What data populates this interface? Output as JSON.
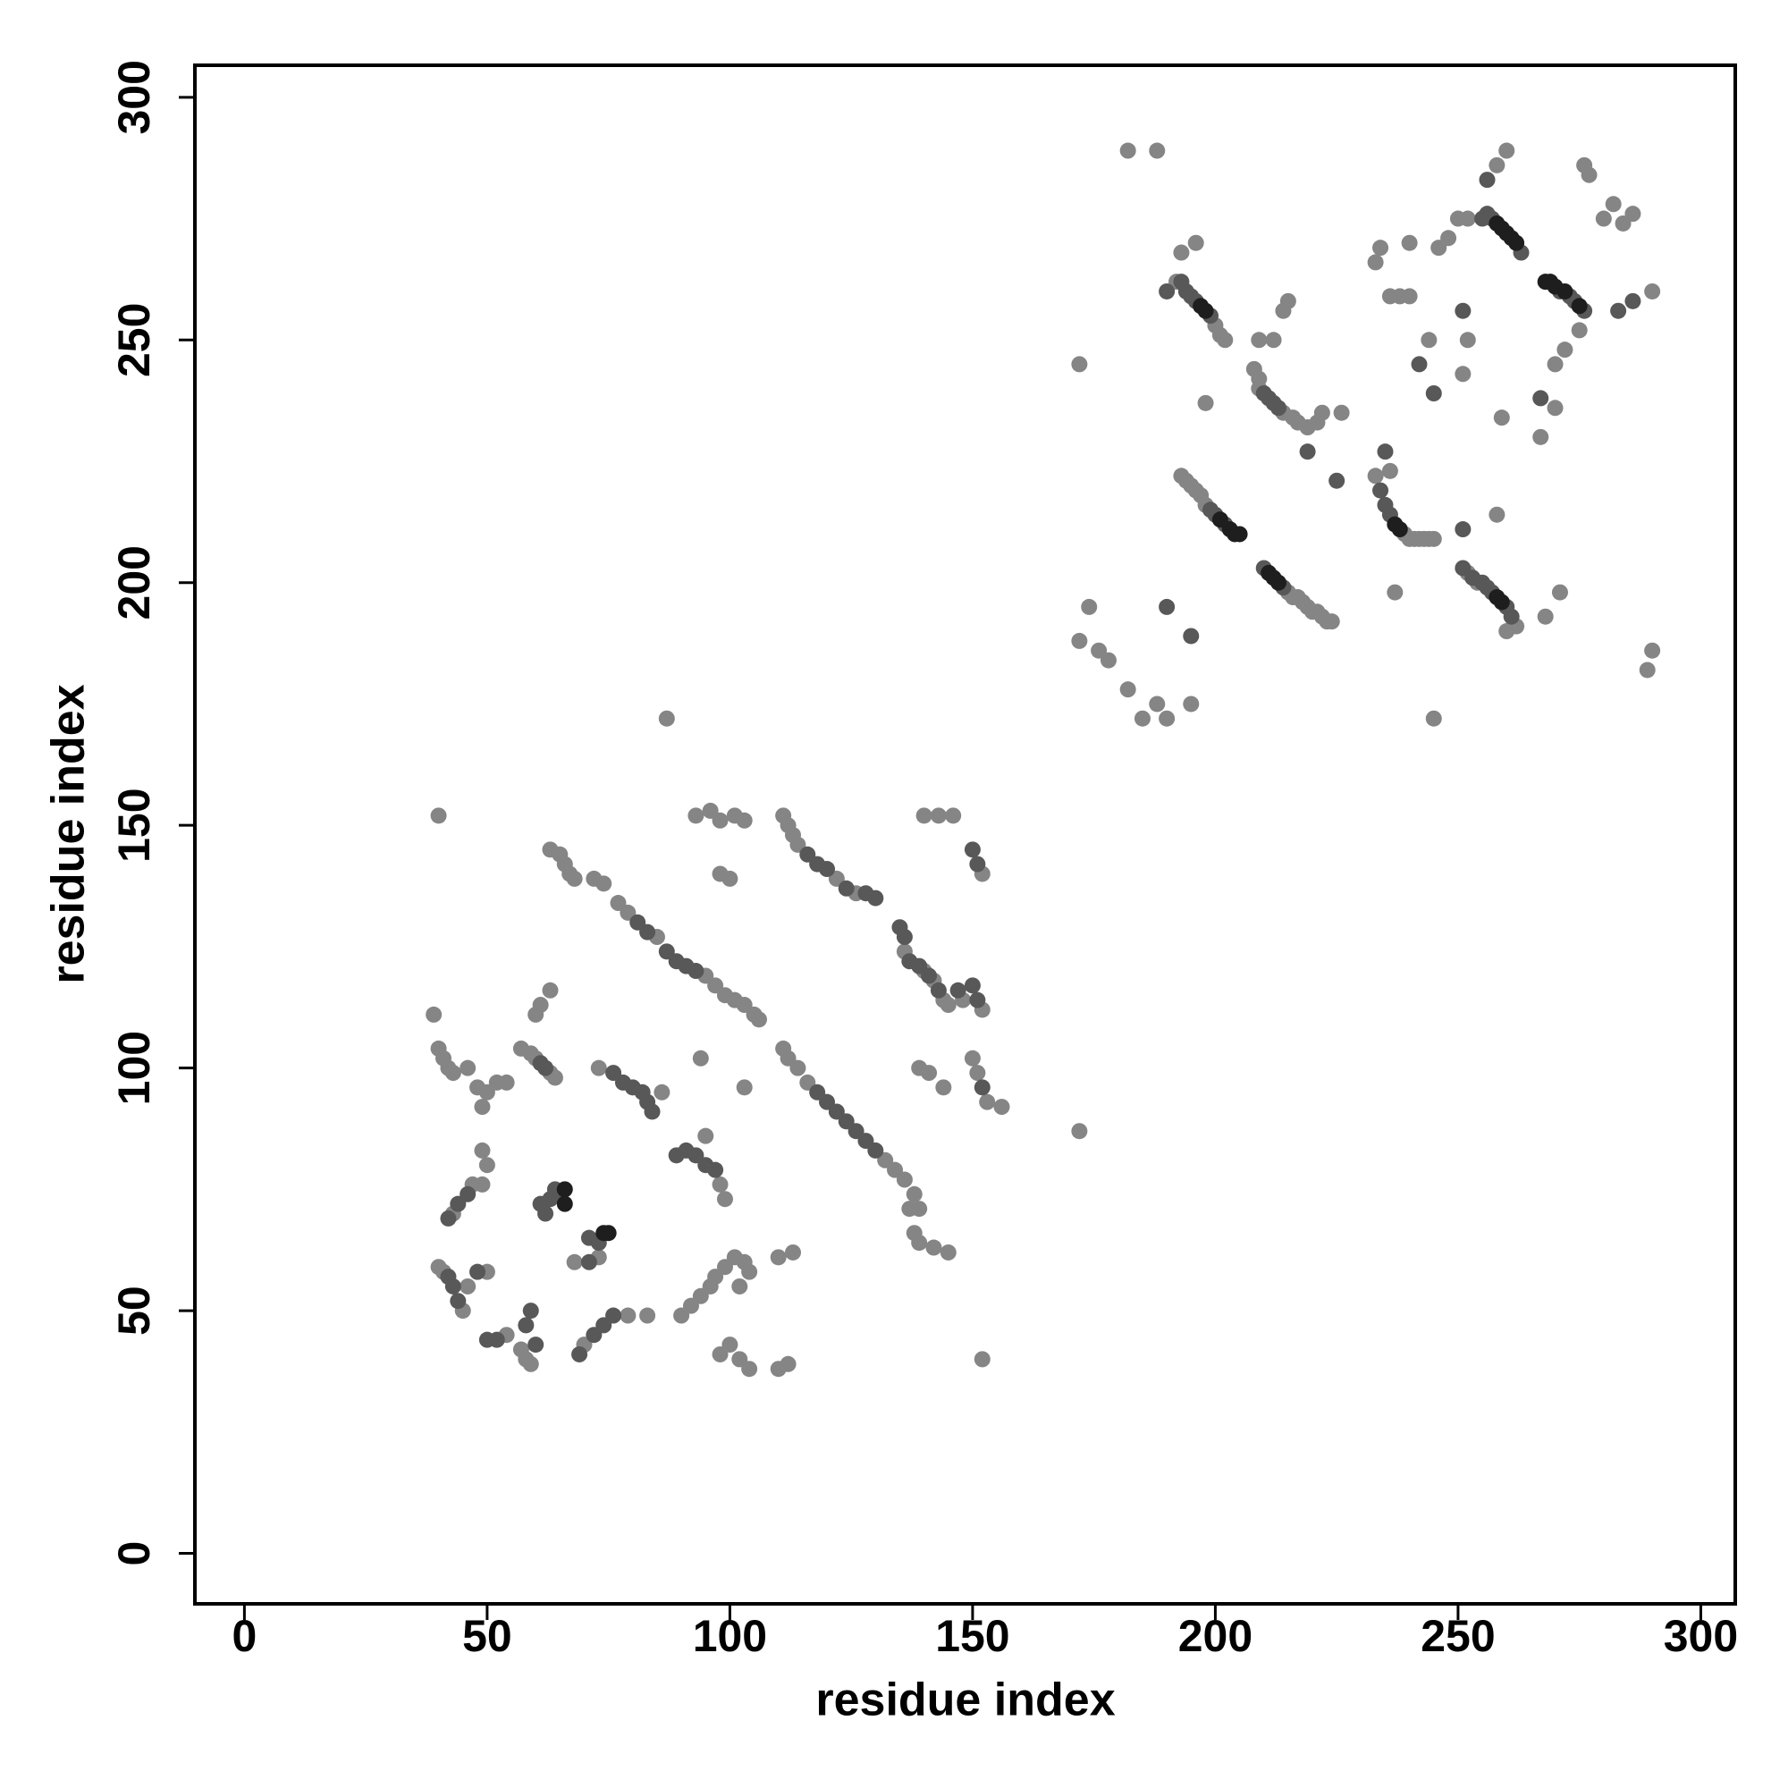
{
  "chart_data": {
    "type": "scatter",
    "xlabel": "residue index",
    "ylabel": "residue index",
    "xlim": [
      -10.2,
      307.1
    ],
    "ylim": [
      -10.4,
      306.6
    ],
    "xticks": [
      0,
      50,
      100,
      150,
      200,
      250,
      300
    ],
    "yticks": [
      0,
      50,
      100,
      150,
      200,
      250,
      300
    ],
    "series": [
      {
        "color": "#858585",
        "x": [
          193,
          194,
          195,
          196,
          197,
          198,
          215,
          216,
          217,
          218,
          219,
          220,
          221,
          222,
          223,
          224,
          233,
          239,
          240,
          241,
          242,
          243,
          244,
          245,
          252,
          254,
          262,
          260,
          192,
          200,
          201,
          202,
          208,
          209,
          209,
          214,
          216,
          217,
          219,
          221,
          222,
          226,
          182,
          188,
          172,
          193,
          196,
          198,
          209,
          212,
          214,
          215,
          236,
          237,
          238,
          240,
          244,
          246,
          248,
          250,
          251,
          252,
          258,
          260,
          259,
          258,
          252,
          270,
          270,
          272,
          275,
          277,
          276,
          280,
          282,
          284,
          286,
          290,
          289,
          290,
          245,
          172,
          174,
          176,
          178,
          182,
          185,
          188,
          190,
          195,
          271,
          268,
          240,
          236,
          234,
          233,
          267,
          74,
          77,
          79,
          85,
          95,
          97,
          99,
          101,
          103,
          105,
          106,
          111,
          112,
          114,
          116,
          132,
          134,
          136,
          138,
          139,
          111,
          112,
          113,
          114,
          122,
          126,
          136,
          140,
          142,
          144,
          145,
          63,
          65,
          66,
          67,
          68,
          72,
          57,
          59,
          60,
          63,
          64,
          73,
          98,
          99,
          73,
          68,
          39,
          40,
          41,
          42,
          43,
          46,
          48,
          50,
          52,
          54,
          49,
          40,
          41,
          45,
          46,
          50,
          43,
          47,
          49,
          50,
          49,
          54,
          57,
          58,
          59,
          70,
          79,
          83,
          90,
          92,
          94,
          96,
          97,
          99,
          101,
          103,
          104,
          102,
          98,
          100,
          102,
          104,
          110,
          112,
          110,
          113,
          93,
          96,
          98,
          101,
          103,
          98,
          100,
          94,
          103,
          140,
          143,
          146,
          152,
          152,
          148,
          150,
          151,
          153,
          156,
          139,
          141,
          144,
          138,
          139,
          142,
          145,
          137,
          40,
          87,
          172,
          152,
          60,
          61,
          63,
          86,
          95
        ],
        "values": [
          222,
          221,
          220,
          219,
          218,
          216,
          198,
          197,
          197,
          196,
          195,
          194,
          194,
          193,
          192,
          192,
          222,
          210,
          209,
          209,
          209,
          209,
          209,
          209,
          202,
          200,
          191,
          190,
          262,
          253,
          251,
          250,
          244,
          242,
          240,
          235,
          234,
          233,
          232,
          233,
          235,
          235,
          289,
          289,
          245,
          268,
          270,
          237,
          250,
          250,
          256,
          258,
          223,
          198,
          259,
          270,
          250,
          269,
          271,
          275,
          243,
          250,
          286,
          289,
          234,
          214,
          275,
          236,
          245,
          248,
          252,
          284,
          286,
          275,
          278,
          274,
          276,
          260,
          182,
          186,
          172,
          188,
          195,
          186,
          184,
          178,
          172,
          175,
          172,
          175,
          198,
          193,
          259,
          259,
          269,
          266,
          230,
          138,
          134,
          132,
          127,
          119,
          117,
          115,
          114,
          113,
          111,
          110,
          104,
          102,
          100,
          97,
          81,
          79,
          77,
          74,
          71,
          152,
          150,
          148,
          146,
          139,
          136,
          124,
          120,
          118,
          114,
          113,
          145,
          144,
          142,
          140,
          139,
          139,
          104,
          103,
          102,
          99,
          98,
          100,
          76,
          73,
          61,
          60,
          111,
          104,
          102,
          100,
          99,
          100,
          96,
          95,
          97,
          97,
          92,
          59,
          58,
          50,
          55,
          58,
          70,
          76,
          76,
          80,
          83,
          45,
          42,
          40,
          39,
          43,
          49,
          49,
          49,
          51,
          53,
          55,
          57,
          59,
          61,
          60,
          58,
          55,
          41,
          43,
          40,
          38,
          38,
          39,
          61,
          62,
          152,
          153,
          151,
          152,
          151,
          140,
          139,
          102,
          96,
          152,
          152,
          152,
          140,
          112,
          114,
          102,
          99,
          93,
          92,
          100,
          99,
          96,
          66,
          64,
          63,
          62,
          71,
          152,
          172,
          87,
          40,
          111,
          113,
          116,
          95,
          86
        ]
      },
      {
        "color": "#585858",
        "x": [
          199,
          200,
          202,
          210,
          214,
          256,
          257,
          260,
          261,
          193,
          194,
          195,
          196,
          199,
          210,
          211,
          212,
          213,
          256,
          257,
          263,
          271,
          273,
          274,
          276,
          234,
          235,
          236,
          251,
          253,
          255,
          190,
          190,
          195,
          251,
          245,
          242,
          286,
          283,
          219,
          225,
          235,
          251,
          255,
          256,
          267,
          81,
          83,
          87,
          89,
          91,
          93,
          118,
          120,
          122,
          124,
          126,
          128,
          130,
          116,
          118,
          120,
          124,
          128,
          130,
          135,
          136,
          137,
          139,
          141,
          143,
          76,
          78,
          80,
          82,
          83,
          84,
          89,
          91,
          93,
          95,
          97,
          61,
          62,
          63,
          64,
          65,
          73,
          71,
          71,
          42,
          44,
          46,
          42,
          43,
          44,
          50,
          52,
          58,
          59,
          69,
          72,
          74,
          76,
          60,
          48,
          61,
          62,
          150,
          151,
          150,
          151,
          152,
          147
        ],
        "values": [
          215,
          214,
          212,
          203,
          199,
          199,
          198,
          195,
          193,
          262,
          260,
          259,
          258,
          255,
          239,
          238,
          237,
          236,
          276,
          275,
          268,
          260,
          259,
          258,
          256,
          219,
          216,
          214,
          203,
          201,
          200,
          260,
          195,
          189,
          256,
          239,
          245,
          258,
          256,
          227,
          221,
          227,
          211,
          275,
          283,
          238,
          130,
          128,
          124,
          122,
          121,
          120,
          95,
          93,
          91,
          89,
          87,
          85,
          83,
          144,
          142,
          141,
          137,
          136,
          135,
          129,
          127,
          122,
          121,
          119,
          116,
          99,
          97,
          96,
          95,
          93,
          91,
          82,
          83,
          82,
          80,
          79,
          72,
          70,
          73,
          75,
          74,
          64,
          65,
          60,
          69,
          72,
          74,
          57,
          55,
          52,
          44,
          44,
          47,
          50,
          41,
          45,
          47,
          49,
          43,
          58,
          101,
          100,
          145,
          142,
          117,
          114,
          96,
          116
        ]
      },
      {
        "color": "#1e1e1e",
        "x": [
          203,
          204,
          205,
          201,
          211,
          212,
          213,
          258,
          259,
          260,
          261,
          262,
          268,
          269,
          270,
          272,
          275,
          258,
          259,
          66,
          66,
          75,
          74,
          197,
          198,
          237,
          238
        ],
        "values": [
          211,
          210,
          210,
          213,
          202,
          201,
          200,
          274,
          273,
          272,
          271,
          270,
          262,
          262,
          261,
          260,
          257,
          197,
          196,
          75,
          72,
          66,
          66,
          257,
          256,
          212,
          211
        ]
      }
    ]
  }
}
